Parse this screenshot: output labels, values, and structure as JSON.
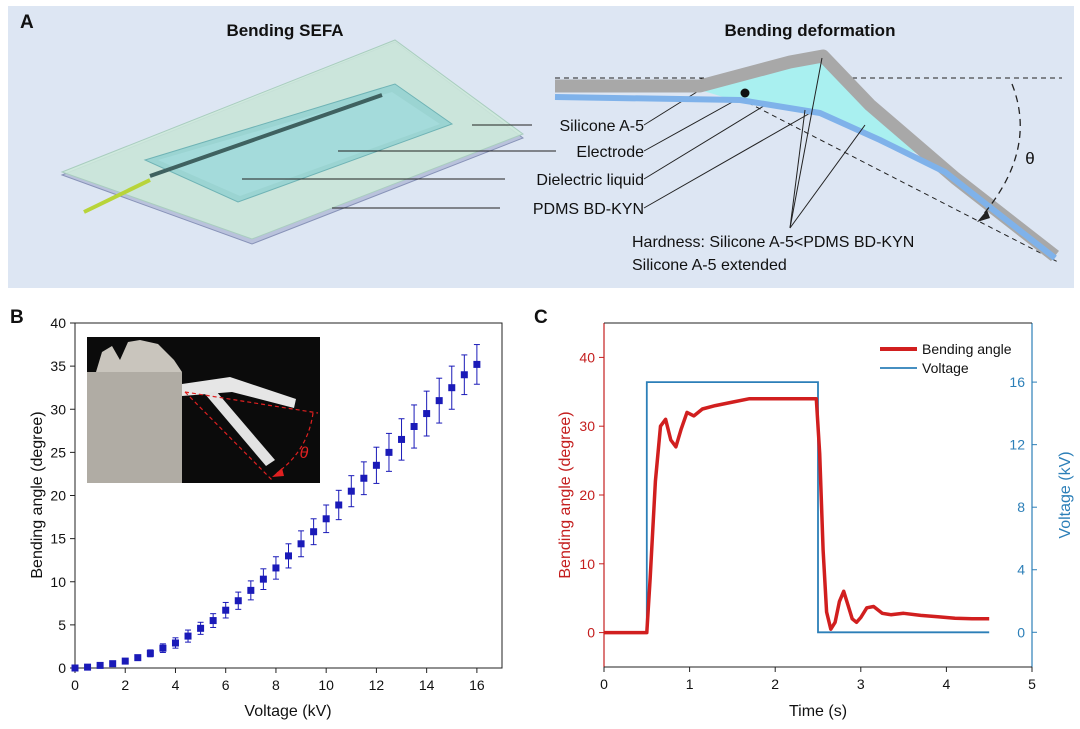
{
  "panel_a": {
    "letter": "A",
    "left_title": "Bending SEFA",
    "right_title": "Bending deformation",
    "labels": [
      "Silicone A-5",
      "Electrode",
      "Dielectric liquid",
      "PDMS BD-KYN"
    ],
    "hardness_note": "Hardness: Silicone A-5<PDMS BD-KYN",
    "extended_note": "Silicone A-5 extended",
    "theta": "θ",
    "colors": {
      "background": "#dde6f3",
      "sheet": "#cfe8dc",
      "liquid": "#a9f0f0",
      "membrane": "#7fb2ea",
      "silicone": "#a8a8a8"
    }
  },
  "chart_data": [
    {
      "type": "scatter",
      "panel": "B",
      "letter": "B",
      "xlabel": "Voltage (kV)",
      "ylabel": "Bending angle (degree)",
      "xlim": [
        0,
        17
      ],
      "ylim": [
        0,
        40
      ],
      "xticks": [
        0,
        2,
        4,
        6,
        8,
        10,
        12,
        14,
        16
      ],
      "yticks": [
        0,
        5,
        10,
        15,
        20,
        25,
        30,
        35,
        40
      ],
      "series": [
        {
          "name": "Bending angle",
          "color": "#1a1ab8",
          "x": [
            0,
            0.5,
            1,
            1.5,
            2,
            2.5,
            3,
            3.5,
            4,
            4.5,
            5,
            5.5,
            6,
            6.5,
            7,
            7.5,
            8,
            8.5,
            9,
            9.5,
            10,
            10.5,
            11,
            11.5,
            12,
            12.5,
            13,
            13.5,
            14,
            14.5,
            15,
            15.5,
            16
          ],
          "y": [
            0,
            0.1,
            0.3,
            0.5,
            0.8,
            1.2,
            1.7,
            2.3,
            2.9,
            3.7,
            4.6,
            5.5,
            6.7,
            7.8,
            9.0,
            10.3,
            11.6,
            13.0,
            14.4,
            15.8,
            17.3,
            18.9,
            20.5,
            22.0,
            23.5,
            25.0,
            26.5,
            28.0,
            29.5,
            31.0,
            32.5,
            34.0,
            35.2
          ],
          "err": [
            0.1,
            0.1,
            0.2,
            0.2,
            0.3,
            0.3,
            0.4,
            0.5,
            0.6,
            0.7,
            0.7,
            0.8,
            0.9,
            1.0,
            1.1,
            1.2,
            1.3,
            1.4,
            1.5,
            1.5,
            1.6,
            1.7,
            1.8,
            1.9,
            2.1,
            2.2,
            2.4,
            2.5,
            2.6,
            2.6,
            2.5,
            2.3,
            2.3
          ]
        }
      ],
      "inset_label": "θ"
    },
    {
      "type": "line",
      "panel": "C",
      "letter": "C",
      "xlabel": "Time (s)",
      "ylabel": "Bending angle (degree)",
      "ylabel_right": "Voltage (kV)",
      "xlim": [
        0,
        5
      ],
      "ylim": [
        -5,
        45
      ],
      "ylim_right": [
        -2.22,
        19.78
      ],
      "xticks": [
        0,
        1,
        2,
        3,
        4,
        5
      ],
      "yticks": [
        0,
        10,
        20,
        30,
        40
      ],
      "yticks_right": [
        0,
        4,
        8,
        12,
        16
      ],
      "series": [
        {
          "name": "Bending angle",
          "axis": "left",
          "color": "#d11f1f",
          "x": [
            0,
            0.5,
            0.54,
            0.6,
            0.66,
            0.72,
            0.78,
            0.84,
            0.9,
            0.97,
            1.05,
            1.15,
            1.3,
            1.5,
            1.7,
            1.9,
            2.1,
            2.3,
            2.48,
            2.52,
            2.56,
            2.6,
            2.65,
            2.7,
            2.75,
            2.8,
            2.85,
            2.9,
            2.95,
            3.0,
            3.07,
            3.15,
            3.25,
            3.35,
            3.5,
            3.7,
            3.9,
            4.1,
            4.3,
            4.5
          ],
          "y": [
            0,
            0,
            8,
            22,
            30,
            31,
            28,
            27,
            29.5,
            32,
            31.5,
            32.5,
            33,
            33.5,
            34,
            34,
            34,
            34,
            34,
            26,
            12,
            3,
            0.5,
            1.5,
            4.5,
            6,
            4,
            2,
            1.5,
            2.2,
            3.6,
            3.8,
            2.8,
            2.6,
            2.8,
            2.5,
            2.3,
            2.1,
            2.0,
            2.0
          ]
        },
        {
          "name": "Voltage",
          "axis": "right",
          "color": "#2c7fb8",
          "x": [
            0,
            0.5,
            0.5,
            2.5,
            2.5,
            4.5
          ],
          "y": [
            0,
            0,
            16,
            16,
            0,
            0
          ]
        }
      ]
    }
  ]
}
